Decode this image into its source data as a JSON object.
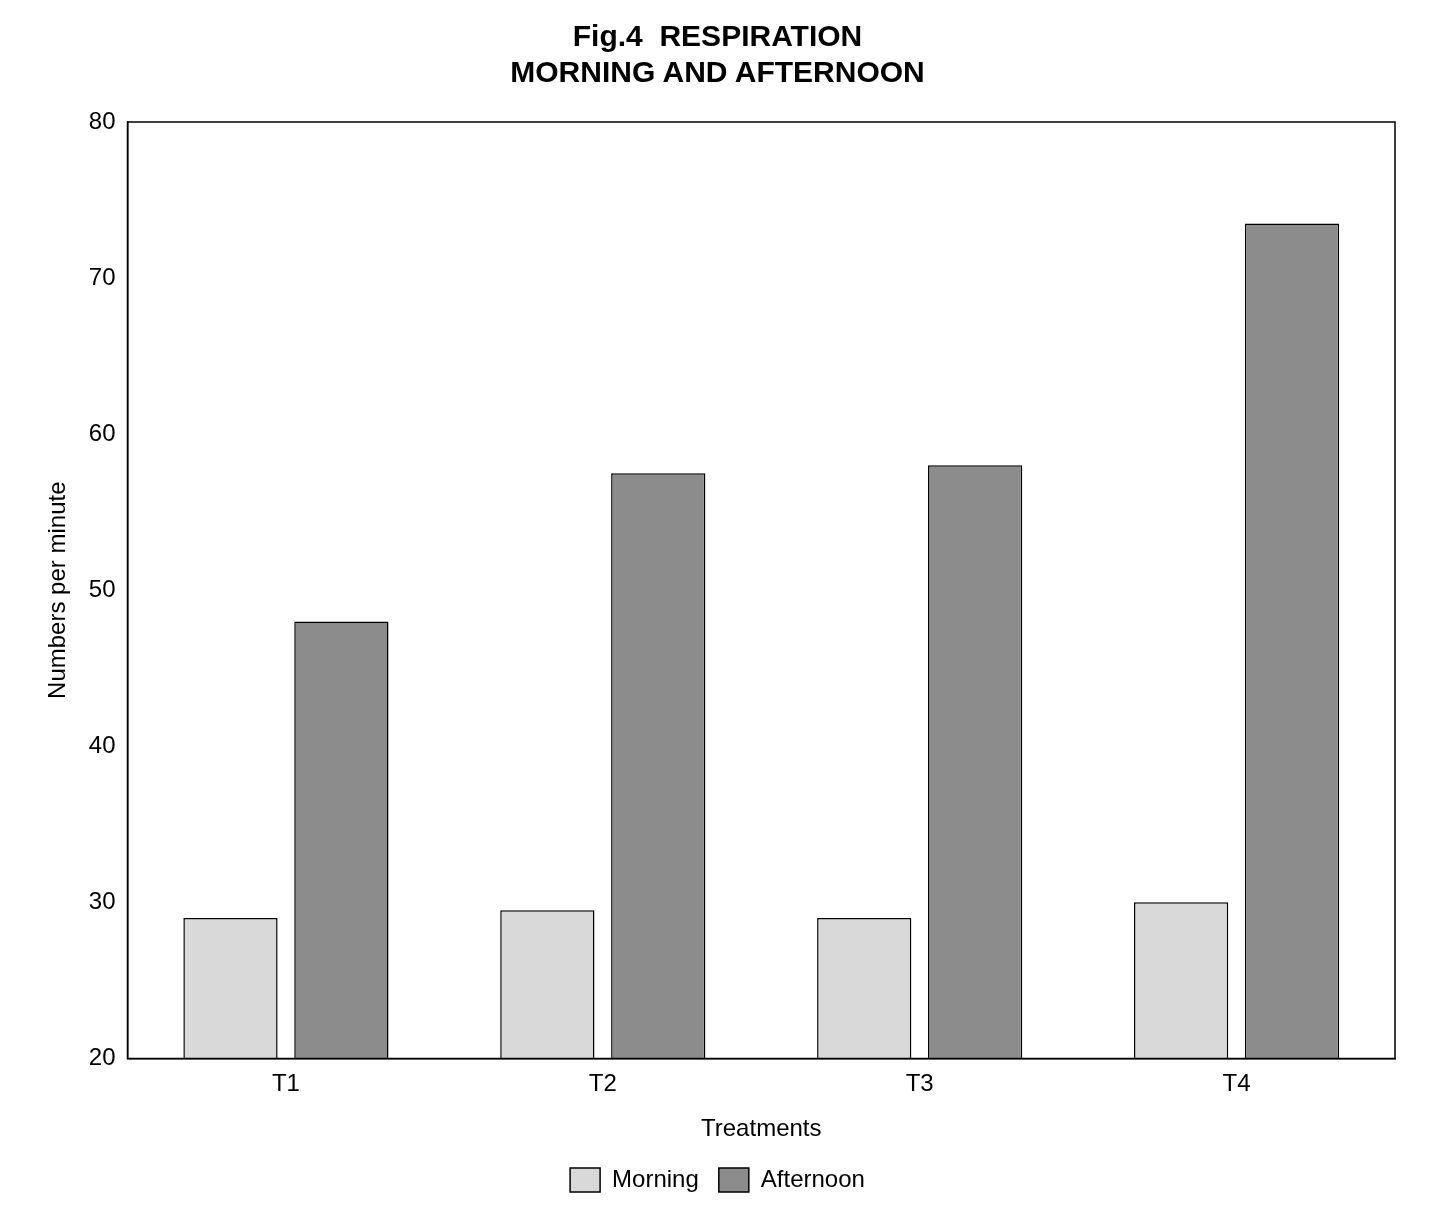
{
  "chart_data": {
    "type": "bar",
    "title": "Fig.4  RESPIRATION\nMORNING AND AFTERNOON",
    "xlabel": "Treatments",
    "ylabel": "Numbers per minute",
    "categories": [
      "T1",
      "T2",
      "T3",
      "T4"
    ],
    "series": [
      {
        "name": "Morning",
        "color": "#d9d9d9",
        "values": [
          29,
          29.5,
          29,
          30
        ]
      },
      {
        "name": "Afternoon",
        "color": "#8c8c8c",
        "values": [
          48,
          57.5,
          58,
          73.5
        ]
      }
    ],
    "ylim": [
      20,
      80
    ],
    "yticks": [
      20,
      30,
      40,
      50,
      60,
      70,
      80
    ],
    "grid": false,
    "legend": "bottom"
  }
}
